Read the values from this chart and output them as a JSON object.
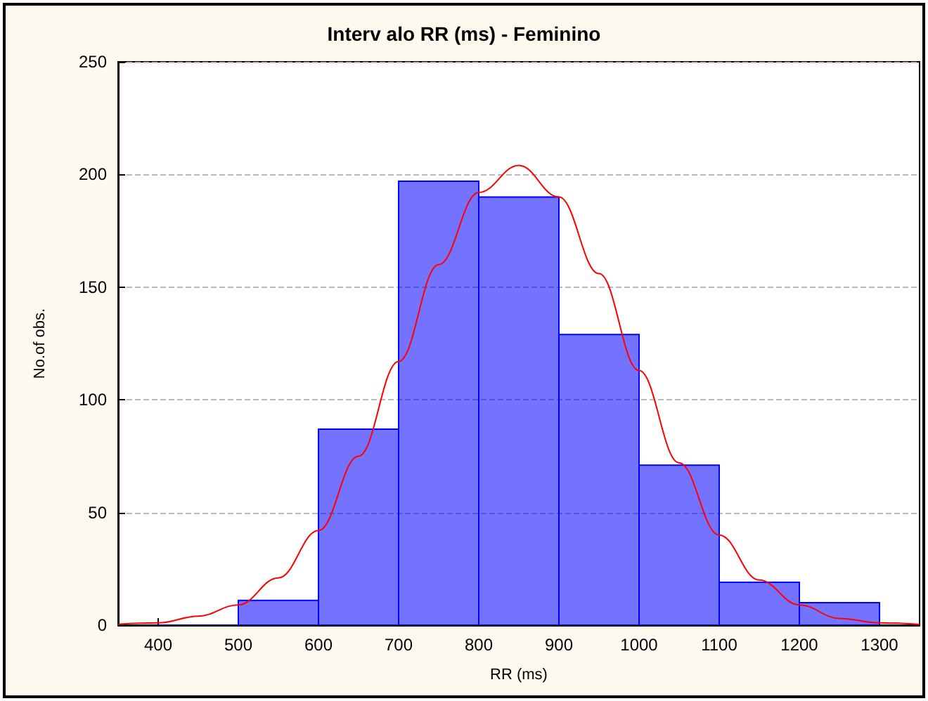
{
  "chart_data": {
    "type": "histogram",
    "title": "Interv alo RR (ms) - Feminino",
    "xlabel": "RR (ms)",
    "ylabel": "No.of obs.",
    "bins": [
      400,
      500,
      600,
      700,
      800,
      900,
      1000,
      1100,
      1200,
      1300
    ],
    "values": [
      0,
      11,
      87,
      197,
      190,
      129,
      71,
      19,
      10
    ],
    "color": "#0000ff",
    "series": [
      {
        "type": "line",
        "color": "#ff0000",
        "x": [
          350,
          400,
          450,
          500,
          550,
          600,
          650,
          700,
          750,
          800,
          850,
          900,
          950,
          1000,
          1050,
          1100,
          1150,
          1200,
          1250,
          1300,
          1350
        ],
        "values": [
          0.4,
          1,
          4,
          9,
          21,
          42,
          75,
          117,
          160,
          192,
          204,
          190,
          156,
          113,
          72,
          40,
          20,
          9,
          3,
          1,
          0.3
        ]
      }
    ],
    "xlim": [
      350,
      1350
    ],
    "xticks": [
      400,
      500,
      600,
      700,
      800,
      900,
      1000,
      1100,
      1200,
      1300
    ],
    "ylim": [
      0,
      250
    ],
    "yticks": [
      0,
      50,
      100,
      150,
      200,
      250
    ],
    "grid": "y",
    "marker": "none",
    "line_style": "solid"
  }
}
